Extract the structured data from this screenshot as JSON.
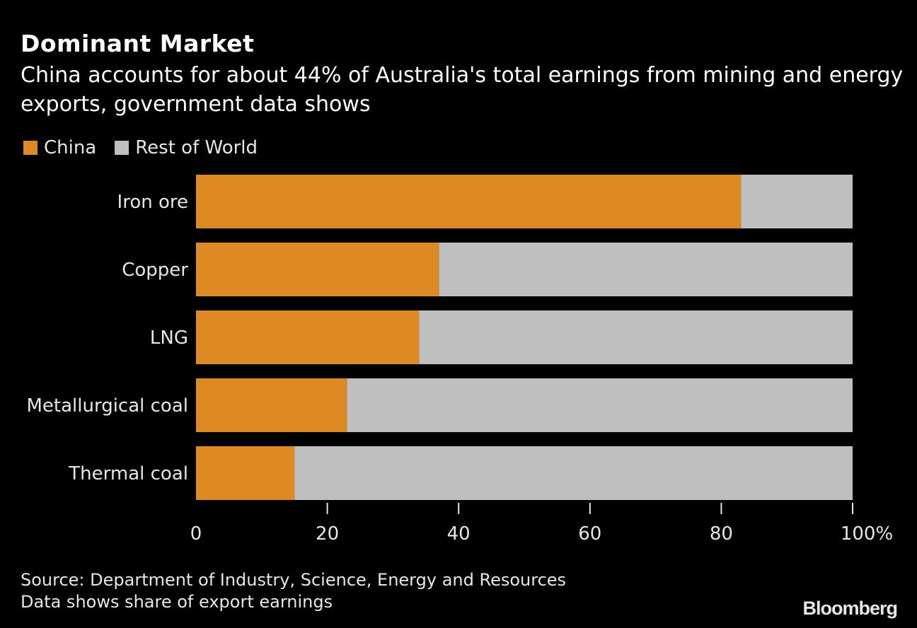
{
  "chart_data": {
    "type": "bar",
    "orientation": "horizontal",
    "stacked": true,
    "title": "Dominant Market",
    "subtitle": "China accounts for about 44% of Australia's total earnings from mining and energy exports, government data shows",
    "categories": [
      "Iron ore",
      "Copper",
      "LNG",
      "Metallurgical coal",
      "Thermal coal"
    ],
    "series": [
      {
        "name": "China",
        "color": "#DB8A24",
        "values": [
          83,
          37,
          34,
          23,
          15
        ]
      },
      {
        "name": "Rest of World",
        "color": "#BFBFBF",
        "values": [
          17,
          63,
          66,
          77,
          85
        ]
      }
    ],
    "xlim": [
      0,
      100
    ],
    "xticks": [
      "0",
      "20",
      "40",
      "60",
      "80",
      "100%"
    ],
    "xtick_values": [
      0,
      20,
      40,
      60,
      80,
      100
    ],
    "grid": false,
    "legend_position": "top-left",
    "source": "Source: Department of Industry, Science, Energy and Resources",
    "note": "Data shows share of export earnings",
    "logo": "Bloomberg"
  }
}
